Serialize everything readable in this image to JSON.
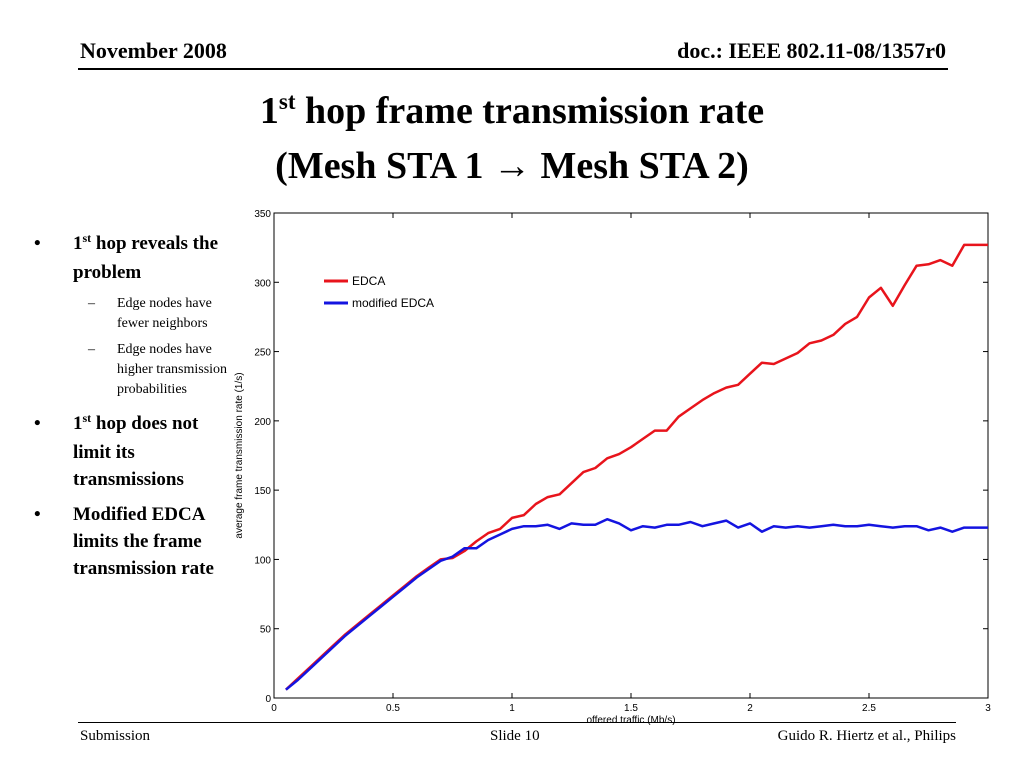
{
  "header": {
    "date": "November 2008",
    "doc": "doc.: IEEE 802.11-08/1357r0"
  },
  "title": {
    "line1_pre": "1",
    "line1_sup": "st",
    "line1_post": " hop frame transmission rate",
    "line2": "(Mesh STA 1 → Mesh STA 2)"
  },
  "bullets": [
    {
      "pre": "1",
      "sup": "st",
      "post": " hop reveals the problem",
      "subs": [
        "Edge nodes have fewer neighbors",
        "Edge nodes have higher transmission probabilities"
      ]
    },
    {
      "pre": "1",
      "sup": "st",
      "post": " hop does not limit its transmissions",
      "subs": []
    },
    {
      "pre": "",
      "sup": "",
      "post": "Modified EDCA limits the frame transmission rate",
      "subs": []
    }
  ],
  "chart_data": {
    "type": "line",
    "xlabel": "offered traffic (Mb/s)",
    "ylabel": "average frame transmission rate (1/s)",
    "xlim": [
      0,
      3
    ],
    "ylim": [
      0,
      350
    ],
    "xticks": [
      0,
      0.5,
      1,
      1.5,
      2,
      2.5,
      3
    ],
    "xtick_labels": [
      "0",
      "0.5",
      "1",
      "1.5",
      "2",
      "2.5",
      "3"
    ],
    "yticks": [
      0,
      50,
      100,
      150,
      200,
      250,
      300,
      350
    ],
    "ytick_labels": [
      "0",
      "50",
      "100",
      "150",
      "200",
      "250",
      "300",
      "350"
    ],
    "grid": false,
    "legend_position": "top-left",
    "x": [
      0.05,
      0.1,
      0.15,
      0.2,
      0.25,
      0.3,
      0.35,
      0.4,
      0.45,
      0.5,
      0.55,
      0.6,
      0.65,
      0.7,
      0.75,
      0.8,
      0.85,
      0.9,
      0.95,
      1.0,
      1.05,
      1.1,
      1.15,
      1.2,
      1.25,
      1.3,
      1.35,
      1.4,
      1.45,
      1.5,
      1.55,
      1.6,
      1.65,
      1.7,
      1.75,
      1.8,
      1.85,
      1.9,
      1.95,
      2.0,
      2.05,
      2.1,
      2.15,
      2.2,
      2.25,
      2.3,
      2.35,
      2.4,
      2.45,
      2.5,
      2.55,
      2.6,
      2.65,
      2.7,
      2.75,
      2.8,
      2.85,
      2.9,
      2.95,
      3.0
    ],
    "series": [
      {
        "name": "EDCA",
        "color": "#e8141c",
        "values": [
          6,
          14,
          22,
          30,
          38,
          46,
          53,
          60,
          67,
          74,
          81,
          88,
          94,
          100,
          101,
          106,
          113,
          119,
          122,
          130,
          132,
          140,
          145,
          147,
          155,
          163,
          166,
          173,
          176,
          181,
          187,
          193,
          193,
          203,
          209,
          215,
          220,
          224,
          226,
          234,
          242,
          241,
          245,
          249,
          256,
          258,
          262,
          270,
          275,
          289,
          296,
          283,
          298,
          312,
          313,
          316,
          312,
          327,
          327,
          327
        ]
      },
      {
        "name": "modified EDCA",
        "color": "#1414e0",
        "values": [
          6,
          13,
          21,
          29,
          37,
          45,
          52,
          59,
          66,
          73,
          80,
          87,
          93,
          99,
          102,
          108,
          108,
          114,
          118,
          122,
          124,
          124,
          125,
          122,
          126,
          125,
          125,
          129,
          126,
          121,
          124,
          123,
          125,
          125,
          127,
          124,
          126,
          128,
          123,
          126,
          120,
          124,
          123,
          124,
          123,
          124,
          125,
          124,
          124,
          125,
          124,
          123,
          124,
          124,
          121,
          123,
          120,
          123,
          123,
          123
        ]
      }
    ]
  },
  "footer": {
    "left": "Submission",
    "center": "Slide 10",
    "right": "Guido R. Hiertz et al., Philips"
  }
}
